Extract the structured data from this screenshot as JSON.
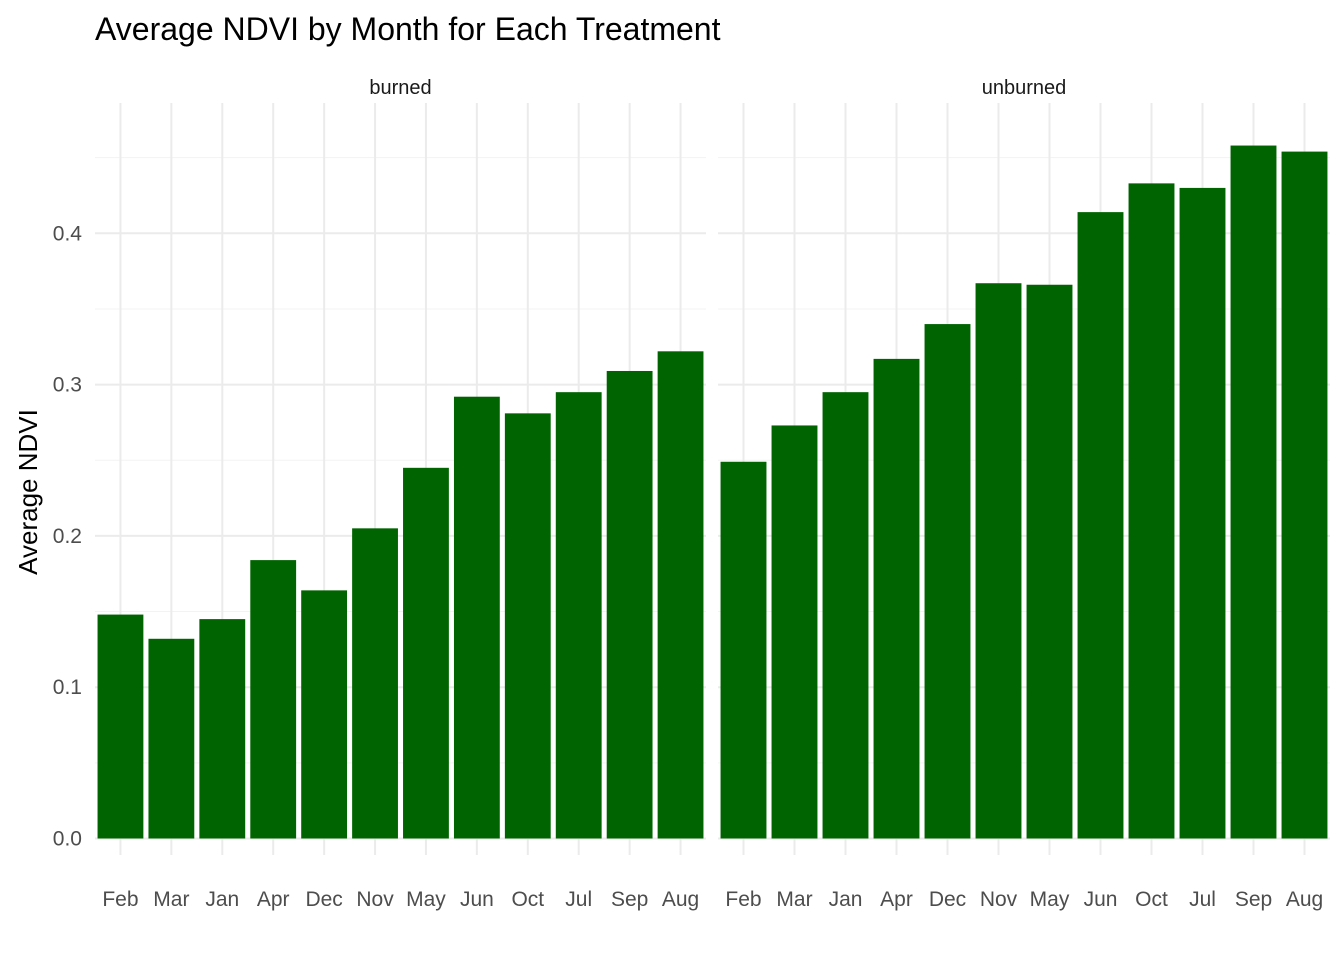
{
  "chart_data": {
    "type": "bar",
    "title": "Average NDVI by Month for Each Treatment",
    "xlabel": "",
    "ylabel": "Average NDVI",
    "categories": [
      "Feb",
      "Mar",
      "Jan",
      "Apr",
      "Dec",
      "Nov",
      "May",
      "Jun",
      "Oct",
      "Jul",
      "Sep",
      "Aug"
    ],
    "ylim": [
      0,
      0.48
    ],
    "yticks": [
      "0.0",
      "0.1",
      "0.2",
      "0.3",
      "0.4"
    ],
    "grid": true,
    "bar_color": "#006400",
    "facets": [
      {
        "name": "burned",
        "values": [
          0.148,
          0.132,
          0.145,
          0.184,
          0.164,
          0.205,
          0.245,
          0.292,
          0.281,
          0.295,
          0.309,
          0.322
        ]
      },
      {
        "name": "unburned",
        "values": [
          0.249,
          0.273,
          0.295,
          0.317,
          0.34,
          0.367,
          0.366,
          0.414,
          0.433,
          0.43,
          0.458,
          0.454
        ]
      }
    ]
  }
}
